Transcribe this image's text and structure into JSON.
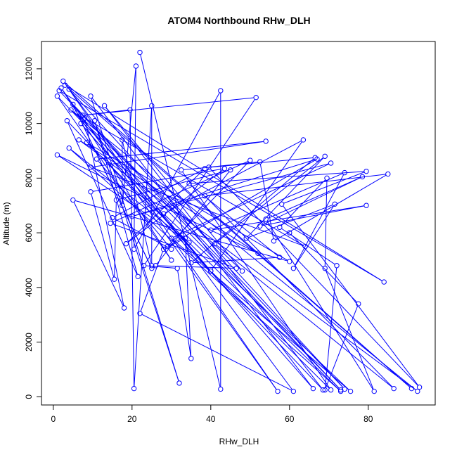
{
  "chart_data": {
    "type": "line",
    "markers": "open-circle",
    "color": "#0000ff",
    "title": "ATOM4 Northbound RHw_DLH",
    "xlabel": "RHw_DLH",
    "ylabel": "Altitude (m)",
    "xlim": [
      -3,
      97
    ],
    "ylim": [
      -300,
      13000
    ],
    "xticks": [
      0,
      20,
      40,
      60,
      80
    ],
    "yticks": [
      0,
      2000,
      4000,
      6000,
      8000,
      10000,
      12000
    ],
    "grid": false,
    "legend": "none",
    "points": [
      [
        22.0,
        12600
      ],
      [
        42.5,
        280
      ],
      [
        42.5,
        11200
      ],
      [
        20.5,
        5400
      ],
      [
        21.0,
        12100
      ],
      [
        17.5,
        7000
      ],
      [
        17.5,
        9400
      ],
      [
        25.0,
        4800
      ],
      [
        25.0,
        10650
      ],
      [
        20.5,
        300
      ],
      [
        19.5,
        10500
      ],
      [
        7.5,
        10300
      ],
      [
        51.5,
        10950
      ],
      [
        23.0,
        4800
      ],
      [
        31.5,
        4700
      ],
      [
        35.0,
        1400
      ],
      [
        33.5,
        5800
      ],
      [
        28.0,
        5400
      ],
      [
        22.0,
        3050
      ],
      [
        61.0,
        200
      ],
      [
        2.5,
        11550
      ],
      [
        91.0,
        300
      ],
      [
        3.0,
        11400
      ],
      [
        84.0,
        4200
      ],
      [
        1.5,
        11200
      ],
      [
        73.0,
        250
      ],
      [
        1.0,
        11000
      ],
      [
        30.0,
        5000
      ],
      [
        2.0,
        11300
      ],
      [
        57.0,
        200
      ],
      [
        4.0,
        11250
      ],
      [
        74.0,
        280
      ],
      [
        5.0,
        10700
      ],
      [
        25.0,
        4700
      ],
      [
        6.0,
        10400
      ],
      [
        40.0,
        4600
      ],
      [
        7.0,
        10000
      ],
      [
        66.0,
        300
      ],
      [
        9.5,
        11000
      ],
      [
        32.0,
        500
      ],
      [
        10.5,
        10100
      ],
      [
        21.5,
        4400
      ],
      [
        3.5,
        10100
      ],
      [
        68.5,
        250
      ],
      [
        13.0,
        10650
      ],
      [
        48.0,
        4600
      ],
      [
        4.5,
        10500
      ],
      [
        92.5,
        200
      ],
      [
        6.5,
        9400
      ],
      [
        52.0,
        5250
      ],
      [
        1.0,
        8850
      ],
      [
        34.5,
        5650
      ],
      [
        4.0,
        9100
      ],
      [
        73.0,
        200
      ],
      [
        8.5,
        9300
      ],
      [
        60.0,
        4950
      ],
      [
        5.0,
        7200
      ],
      [
        18.0,
        3250
      ],
      [
        8.0,
        10200
      ],
      [
        64.0,
        5500
      ],
      [
        9.5,
        8400
      ],
      [
        54.0,
        9350
      ],
      [
        11.0,
        8700
      ],
      [
        30.0,
        5400
      ],
      [
        15.0,
        6550
      ],
      [
        38.5,
        8350
      ],
      [
        18.5,
        5600
      ],
      [
        43.5,
        8350
      ],
      [
        9.5,
        7500
      ],
      [
        15.5,
        4300
      ],
      [
        16.0,
        7200
      ],
      [
        45.0,
        8300
      ],
      [
        26.0,
        4800
      ],
      [
        46.5,
        4700
      ],
      [
        14.5,
        6350
      ],
      [
        50.0,
        8650
      ],
      [
        29.0,
        5500
      ],
      [
        67.0,
        8700
      ],
      [
        20.0,
        6600
      ],
      [
        70.5,
        8550
      ],
      [
        30.0,
        5800
      ],
      [
        75.5,
        200
      ],
      [
        28.0,
        6700
      ],
      [
        63.5,
        9400
      ],
      [
        40.0,
        4600
      ],
      [
        70.5,
        250
      ],
      [
        32.5,
        8300
      ],
      [
        66.5,
        8750
      ],
      [
        35.0,
        4900
      ],
      [
        57.5,
        5100
      ],
      [
        34.5,
        7800
      ],
      [
        79.5,
        8250
      ],
      [
        58.0,
        7050
      ],
      [
        93.0,
        350
      ],
      [
        39.5,
        8400
      ],
      [
        52.5,
        8600
      ],
      [
        56.0,
        5700
      ],
      [
        85.0,
        8150
      ],
      [
        38.5,
        7350
      ],
      [
        86.5,
        300
      ],
      [
        41.0,
        5600
      ],
      [
        69.0,
        8800
      ],
      [
        49.0,
        5800
      ],
      [
        71.5,
        7050
      ],
      [
        61.0,
        4700
      ],
      [
        74.0,
        8200
      ],
      [
        40.0,
        6100
      ],
      [
        79.5,
        7000
      ],
      [
        52.5,
        6250
      ],
      [
        78.5,
        8050
      ],
      [
        54.0,
        6500
      ],
      [
        81.5,
        200
      ],
      [
        69.0,
        4700
      ],
      [
        69.5,
        8000
      ],
      [
        57.5,
        6200
      ],
      [
        72.0,
        4800
      ],
      [
        69.0,
        250
      ],
      [
        77.5,
        3400
      ],
      [
        60.0,
        6000
      ]
    ]
  }
}
